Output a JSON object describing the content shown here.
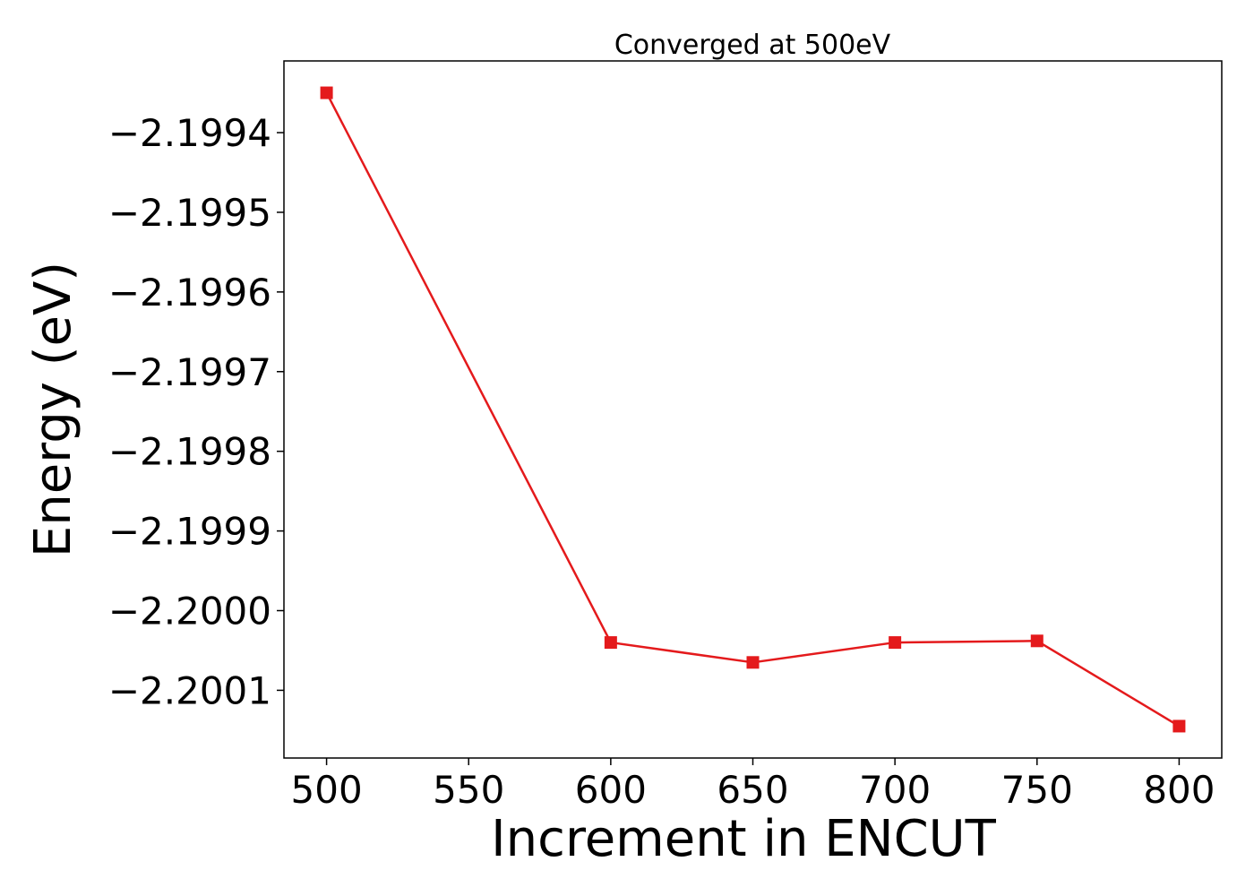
{
  "chart_data": {
    "type": "line",
    "title": "Converged at 500eV",
    "xlabel": "Increment in ENCUT",
    "ylabel": "Energy (eV)",
    "x": [
      500,
      600,
      650,
      700,
      750,
      800
    ],
    "series": [
      {
        "values": [
          -2.19935,
          -2.20004,
          -2.200065,
          -2.20004,
          -2.200038,
          -2.200145
        ],
        "color": "#e41a1c",
        "marker": "square"
      }
    ],
    "xlim": [
      485,
      815
    ],
    "ylim": [
      -2.200185,
      -2.19931
    ],
    "xticks": [
      500,
      550,
      600,
      650,
      700,
      750,
      800
    ],
    "xtick_labels": [
      "500",
      "550",
      "600",
      "650",
      "700",
      "750",
      "800"
    ],
    "yticks": [
      -2.1994,
      -2.1995,
      -2.1996,
      -2.1997,
      -2.1998,
      -2.1999,
      -2.2,
      -2.2001
    ],
    "ytick_labels": [
      "−2.1994",
      "−2.1995",
      "−2.1996",
      "−2.1997",
      "−2.1998",
      "−2.1999",
      "−2.2000",
      "−2.2001"
    ],
    "grid": false,
    "legend": "none"
  }
}
